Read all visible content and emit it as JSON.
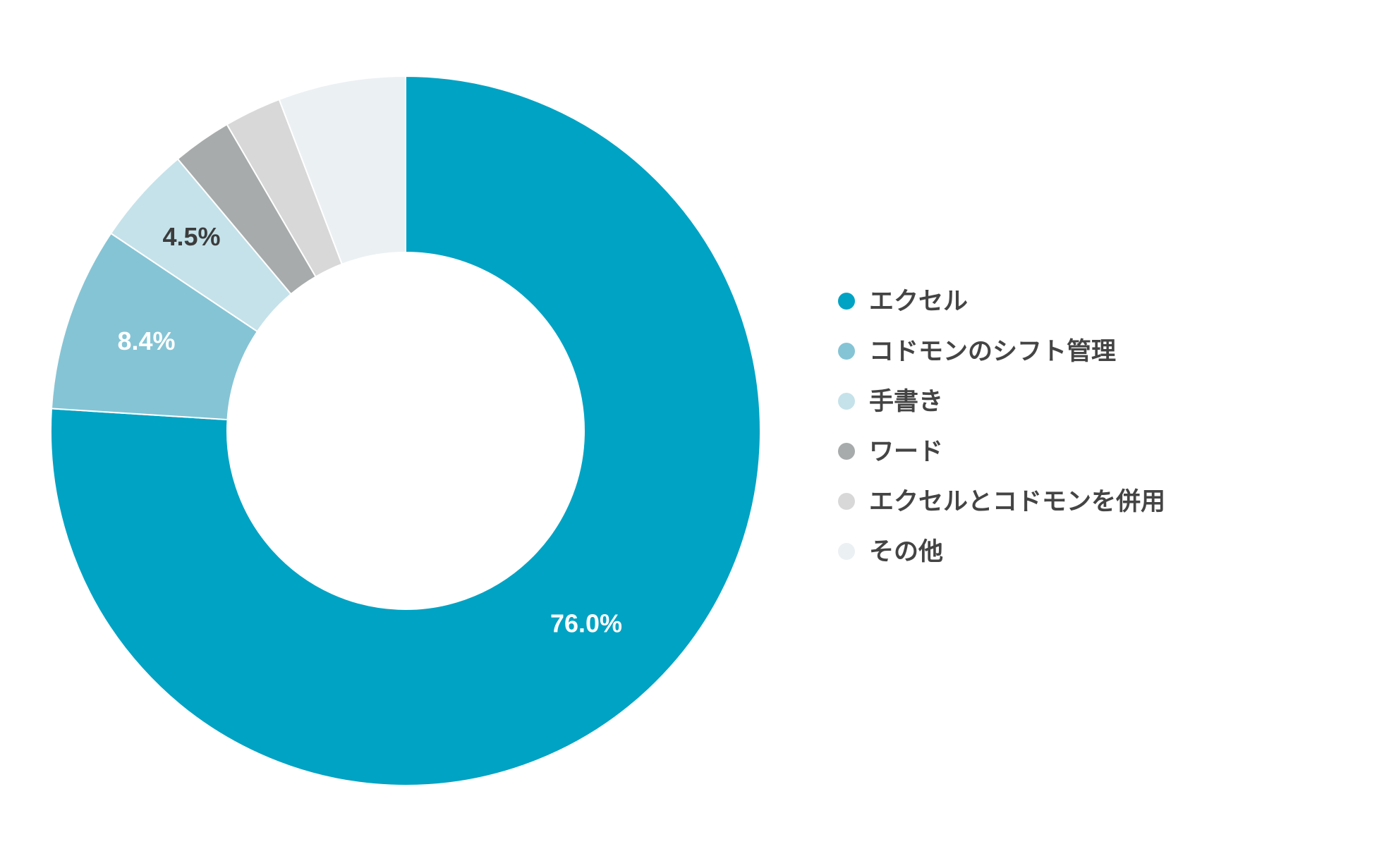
{
  "chart_data": {
    "type": "pie",
    "donut": true,
    "categories": [
      "エクセル",
      "コドモンのシフト管理",
      "手書き",
      "ワード",
      "エクセルとコドモンを併用",
      "その他"
    ],
    "values": [
      76.0,
      8.4,
      4.5,
      2.7,
      2.6,
      5.8
    ],
    "data_labels": [
      "76.0%",
      "8.4%",
      "4.5%",
      "",
      "",
      ""
    ],
    "colors": [
      "#00a3c4",
      "#85c4d5",
      "#c5e2ea",
      "#a7abab",
      "#d8d8d8",
      "#ebf0f3"
    ],
    "label_colors": [
      "#ffffff",
      "#ffffff",
      "#3c3c3c",
      "",
      "",
      ""
    ],
    "legend_position": "right",
    "start": "top",
    "direction": "clockwise"
  }
}
